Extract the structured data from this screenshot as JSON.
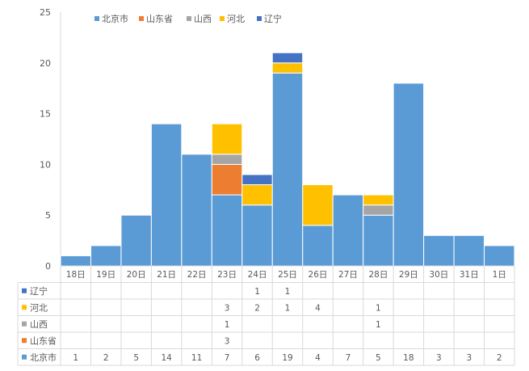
{
  "chart_data": {
    "type": "bar",
    "stacked": true,
    "title": "",
    "xlabel": "",
    "ylabel": "",
    "ylim": [
      0,
      25
    ],
    "yticks": [
      0,
      5,
      10,
      15,
      20,
      25
    ],
    "grid": false,
    "legend_position": "top",
    "categories": [
      "18日",
      "19日",
      "20日",
      "21日",
      "22日",
      "23日",
      "24日",
      "25日",
      "26日",
      "27日",
      "28日",
      "29日",
      "30日",
      "31日",
      "1日"
    ],
    "series": [
      {
        "name": "北京市",
        "color": "#5B9BD5",
        "values": [
          1,
          2,
          5,
          14,
          11,
          7,
          6,
          19,
          4,
          7,
          5,
          18,
          3,
          3,
          2
        ]
      },
      {
        "name": "山东省",
        "color": "#ED7D31",
        "values": [
          null,
          null,
          null,
          null,
          null,
          3,
          null,
          null,
          null,
          null,
          null,
          null,
          null,
          null,
          null
        ]
      },
      {
        "name": "山西",
        "color": "#A5A5A5",
        "values": [
          null,
          null,
          null,
          null,
          null,
          1,
          null,
          null,
          null,
          null,
          1,
          null,
          null,
          null,
          null
        ]
      },
      {
        "name": "河北",
        "color": "#FFC000",
        "values": [
          null,
          null,
          null,
          null,
          null,
          3,
          2,
          1,
          4,
          null,
          1,
          null,
          null,
          null,
          null
        ]
      },
      {
        "name": "辽宁",
        "color": "#4472C4",
        "values": [
          null,
          null,
          null,
          null,
          null,
          null,
          1,
          1,
          null,
          null,
          null,
          null,
          null,
          null,
          null
        ]
      }
    ],
    "table_row_order": [
      "辽宁",
      "河北",
      "山西",
      "山东省",
      "北京市"
    ]
  }
}
